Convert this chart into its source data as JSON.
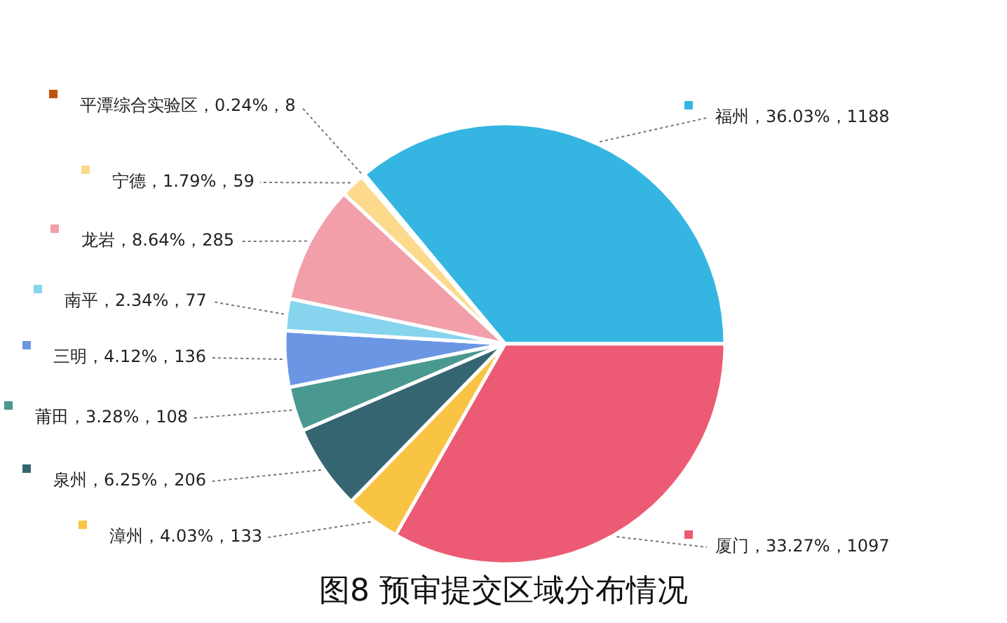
{
  "chart_data": {
    "type": "pie",
    "title": "图8 预审提交区域分布情况",
    "categories": [
      "福州",
      "厦门",
      "漳州",
      "泉州",
      "莆田",
      "三明",
      "南平",
      "龙岩",
      "宁德",
      "平潭综合实验区"
    ],
    "values": [
      1188,
      1097,
      133,
      206,
      108,
      136,
      77,
      285,
      59,
      8
    ],
    "value_labels": [
      "，36.03%，1188",
      "，33.27%，1097",
      "，4.03%，133",
      "，6.25%，206",
      "，3.28%，108",
      "，4.12%，136",
      "，2.34%，77",
      "，8.64%，285",
      "，1.79%，59",
      "，0.24%，8"
    ],
    "colors": [
      "#35b6e2",
      "#ec5b73",
      "#f9c443",
      "#366572",
      "#4a9990",
      "#6b96e4",
      "#86d4ed",
      "#f29fa9",
      "#fcd98b",
      "#c0510f"
    ],
    "legend": "left"
  }
}
